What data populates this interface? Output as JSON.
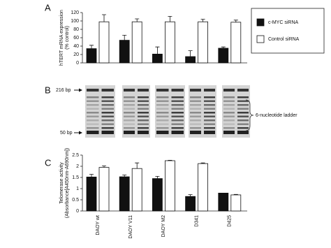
{
  "chart_data": [
    {
      "type": "bar",
      "panel": "A",
      "ylabel": [
        "hTERT mRNA expression",
        "(% control)"
      ],
      "ylim": [
        0,
        120
      ],
      "yticks": [
        0,
        20,
        40,
        60,
        80,
        100,
        120
      ],
      "legend": "right",
      "series": [
        {
          "name": "c-MYC siRNA",
          "color": "#111111",
          "values": [
            34,
            54,
            21,
            15,
            35
          ],
          "errors": [
            8,
            12,
            17,
            14,
            3
          ]
        },
        {
          "name": "Control siRNA",
          "color": "#ffffff",
          "values": [
            98,
            98,
            98,
            98,
            97
          ],
          "errors": [
            17,
            7,
            13,
            6,
            5
          ]
        }
      ]
    },
    {
      "type": "bar",
      "panel": "C",
      "ylabel": [
        "Telomerase activity",
        "(Absorbance[A450nm-A690nm])"
      ],
      "categories": [
        "DAOY wt",
        "DAOY V11",
        "DAOY M2",
        "D341",
        "D425"
      ],
      "ylim": [
        0,
        2.5
      ],
      "yticks": [
        0,
        0.5,
        1,
        1.5,
        2,
        2.5
      ],
      "series": [
        {
          "color": "#111111",
          "values": [
            1.52,
            1.53,
            1.45,
            0.65,
            0.8
          ],
          "errors": [
            0.12,
            0.08,
            0.1,
            0.08,
            0
          ]
        },
        {
          "color": "#ffffff",
          "values": [
            1.95,
            1.9,
            2.25,
            2.12,
            0.72
          ],
          "errors": [
            0.07,
            0.25,
            0.02,
            0.03,
            0.02
          ]
        }
      ]
    }
  ],
  "gel": {
    "panel": "B",
    "markers": [
      "216 bp",
      "50 bp"
    ],
    "annotation": "6-nucleotide ladder"
  }
}
